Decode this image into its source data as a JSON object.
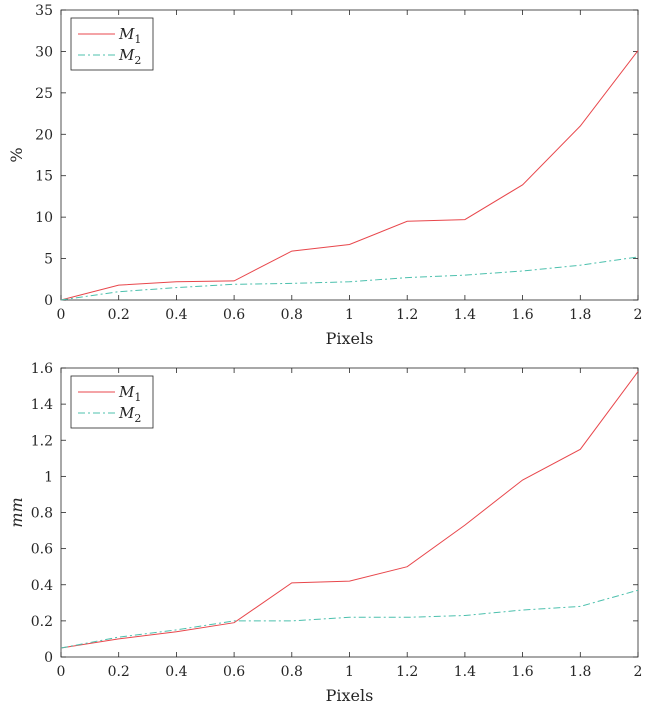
{
  "chart_data": [
    {
      "type": "line",
      "title": "",
      "xlabel": "Pixels",
      "ylabel": "%",
      "xlim": [
        0,
        2
      ],
      "ylim": [
        0,
        35
      ],
      "xticks": [
        0,
        0.2,
        0.4,
        0.6,
        0.8,
        1,
        1.2,
        1.4,
        1.6,
        1.8,
        2
      ],
      "xtick_labels": [
        "0",
        "0.2",
        "0.4",
        "0.6",
        "0.8",
        "1",
        "1.2",
        "1.4",
        "1.6",
        "1.8",
        "2"
      ],
      "yticks": [
        0,
        5,
        10,
        15,
        20,
        25,
        30,
        35
      ],
      "ytick_labels": [
        "0",
        "5",
        "10",
        "15",
        "20",
        "25",
        "30",
        "35"
      ],
      "grid": false,
      "legend_placement": "top-left",
      "x": [
        0,
        0.2,
        0.4,
        0.6,
        0.8,
        1,
        1.2,
        1.4,
        1.6,
        1.8,
        2
      ],
      "series": [
        {
          "name": "M",
          "subscript": "1",
          "color": "#e8474c",
          "style": "solid",
          "values": [
            0,
            1.8,
            2.2,
            2.3,
            5.9,
            6.7,
            9.5,
            9.7,
            13.9,
            21.0,
            30.1
          ]
        },
        {
          "name": "M",
          "subscript": "2",
          "color": "#4cc0ad",
          "style": "dashdot",
          "values": [
            0,
            1.0,
            1.5,
            1.9,
            2.0,
            2.2,
            2.7,
            3.0,
            3.5,
            4.2,
            5.2
          ]
        }
      ]
    },
    {
      "type": "line",
      "title": "",
      "xlabel": "Pixels",
      "ylabel": "mm",
      "xlim": [
        0,
        2
      ],
      "ylim": [
        0,
        1.6
      ],
      "xticks": [
        0,
        0.2,
        0.4,
        0.6,
        0.8,
        1,
        1.2,
        1.4,
        1.6,
        1.8,
        2
      ],
      "xtick_labels": [
        "0",
        "0.2",
        "0.4",
        "0.6",
        "0.8",
        "1",
        "1.2",
        "1.4",
        "1.6",
        "1.8",
        "2"
      ],
      "yticks": [
        0,
        0.2,
        0.4,
        0.6,
        0.8,
        1,
        1.2,
        1.4,
        1.6
      ],
      "ytick_labels": [
        "0",
        "0.2",
        "0.4",
        "0.6",
        "0.8",
        "1",
        "1.2",
        "1.4",
        "1.6"
      ],
      "grid": false,
      "legend_placement": "top-left",
      "x": [
        0,
        0.2,
        0.4,
        0.6,
        0.8,
        1,
        1.2,
        1.4,
        1.6,
        1.8,
        2
      ],
      "series": [
        {
          "name": "M",
          "subscript": "1",
          "color": "#e8474c",
          "style": "solid",
          "values": [
            0.05,
            0.1,
            0.14,
            0.19,
            0.41,
            0.42,
            0.5,
            0.73,
            0.98,
            1.15,
            1.58
          ]
        },
        {
          "name": "M",
          "subscript": "2",
          "color": "#4cc0ad",
          "style": "dashdot",
          "values": [
            0.05,
            0.11,
            0.15,
            0.2,
            0.2,
            0.22,
            0.22,
            0.23,
            0.26,
            0.28,
            0.37
          ]
        }
      ]
    }
  ]
}
